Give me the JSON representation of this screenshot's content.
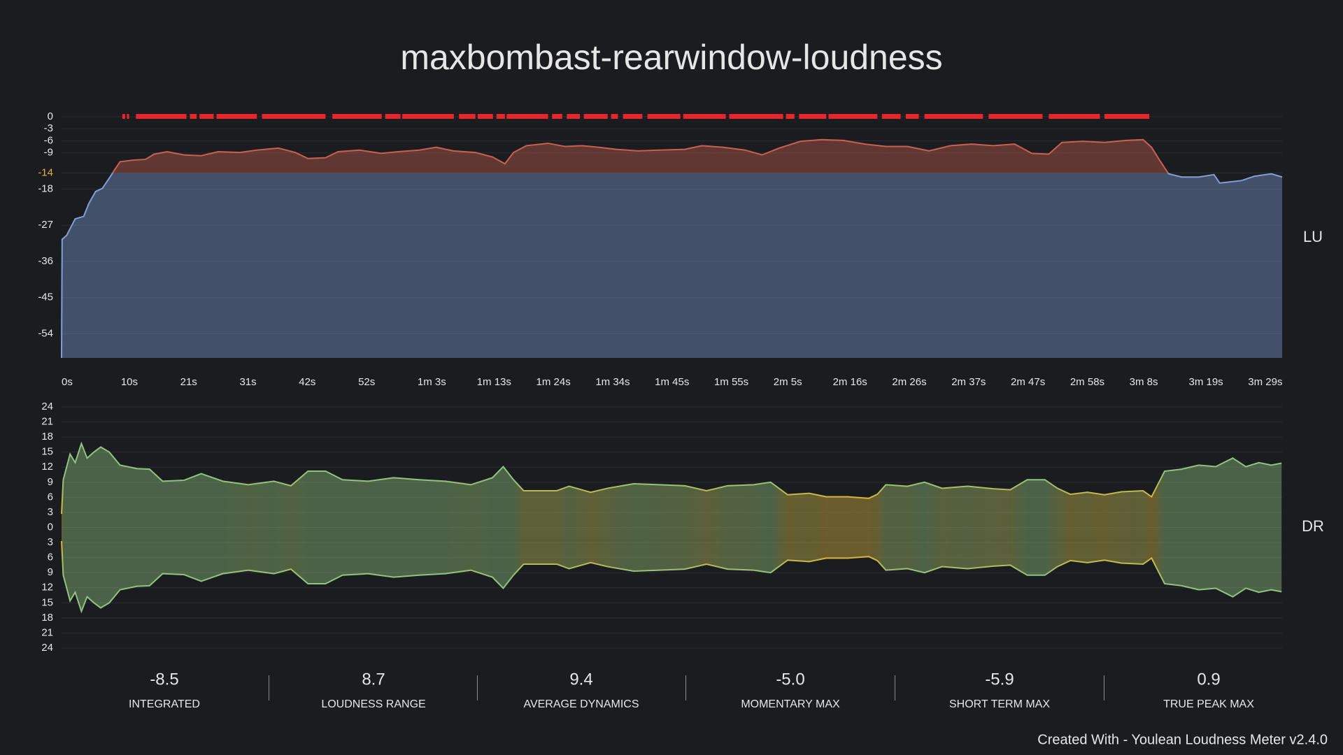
{
  "title": "maxbombast-rearwindow-loudness",
  "chart_data": [
    {
      "type": "area",
      "ylabel": "LU",
      "x": [
        0,
        0.1,
        0.9,
        2.4,
        3.9,
        4.8,
        6.0,
        7.2,
        8.4,
        9.4,
        10.3,
        12.5,
        14.8,
        16.3,
        18.6,
        21.6,
        24.6,
        27.6,
        31.4,
        34.4,
        38.2,
        41.2,
        43.4,
        46.5,
        48.7,
        52.5,
        56.3,
        59.3,
        63.0,
        66.0,
        69.0,
        72.9,
        75.9,
        78.1,
        79.6,
        81.9,
        85.7,
        88.7,
        91.7,
        94.7,
        97.7,
        101.5,
        105.3,
        109.8,
        112.8,
        116.6,
        120.4,
        123.4,
        126.4,
        130.2,
        133.9,
        137.7,
        141.5,
        145.2,
        149.0,
        152.8,
        156.6,
        160.3,
        164.1,
        167.9,
        170.9,
        173.9,
        176.2,
        179.9,
        183.7,
        187.5,
        190.5,
        192.0,
        193.5,
        195.0,
        197.3,
        200.3,
        203.0,
        204.0,
        207.8,
        210.1,
        213.1,
        215.0
      ],
      "values": [
        -60,
        -30.5,
        -29.5,
        -25.4,
        -24.8,
        -21.6,
        -18.6,
        -17.8,
        -15.3,
        -13.1,
        -11.2,
        -10.8,
        -10.6,
        -9.3,
        -8.7,
        -9.5,
        -9.7,
        -8.7,
        -8.9,
        -8.3,
        -7.8,
        -8.9,
        -10.4,
        -10.2,
        -8.7,
        -8.3,
        -9.1,
        -8.7,
        -8.3,
        -7.6,
        -8.5,
        -8.9,
        -10,
        -11.7,
        -8.9,
        -7.2,
        -6.6,
        -7.4,
        -7.2,
        -7.6,
        -8.1,
        -8.5,
        -8.3,
        -8.1,
        -7.2,
        -7.6,
        -8.3,
        -9.5,
        -7.8,
        -6.1,
        -5.7,
        -5.9,
        -6.8,
        -7.4,
        -7.4,
        -8.5,
        -7.2,
        -6.8,
        -7.2,
        -6.8,
        -9.1,
        -9.3,
        -6.4,
        -6.1,
        -6.4,
        -5.9,
        -5.7,
        -7.6,
        -11,
        -14.2,
        -15,
        -15,
        -14.4,
        -16.5,
        -15.9,
        -14.8,
        -14.2,
        -15
      ],
      "xlim": [
        0,
        215
      ],
      "ylim": [
        -60,
        0
      ],
      "yticks": [
        0,
        -3,
        -6,
        -9,
        -14,
        -18,
        -27,
        -36,
        -45,
        -54
      ],
      "xticks": [
        {
          "value": 0,
          "label": "0s"
        },
        {
          "value": 10.45,
          "label": "10s"
        },
        {
          "value": 20.9,
          "label": "21s"
        },
        {
          "value": 31.35,
          "label": "31s"
        },
        {
          "value": 41.8,
          "label": "42s"
        },
        {
          "value": 52.25,
          "label": "52s"
        },
        {
          "value": 62.7,
          "label": "1m 3s"
        },
        {
          "value": 73.15,
          "label": "1m 13s"
        },
        {
          "value": 83.6,
          "label": "1m 24s"
        },
        {
          "value": 94.05,
          "label": "1m 34s"
        },
        {
          "value": 104.5,
          "label": "1m 45s"
        },
        {
          "value": 114.95,
          "label": "1m 55s"
        },
        {
          "value": 125.4,
          "label": "2m 5s"
        },
        {
          "value": 135.85,
          "label": "2m 16s"
        },
        {
          "value": 146.3,
          "label": "2m 26s"
        },
        {
          "value": 156.75,
          "label": "2m 37s"
        },
        {
          "value": 167.2,
          "label": "2m 47s"
        },
        {
          "value": 177.65,
          "label": "2m 58s"
        },
        {
          "value": 188.1,
          "label": "3m 8s"
        },
        {
          "value": 198.55,
          "label": "3m 19s"
        },
        {
          "value": 209,
          "label": "3m 29s"
        }
      ],
      "target": -14,
      "target_color": "#e0b13c",
      "above_color": "#c9604f",
      "below_color": "#7f9fd6",
      "grid": true,
      "clip_markers": {
        "color": "#e5262b",
        "start": [
          10.7,
          11.5,
          13.1,
          22.6,
          24.3,
          27.3,
          35.3,
          47.7,
          57.0,
          60.0,
          70.0,
          73.3,
          76.6,
          78.4,
          86.4,
          89.0,
          92.0,
          96.8,
          98.9,
          103.2,
          109.5,
          117.6,
          127.6,
          129.9,
          135.1,
          144.5,
          148.7,
          152.0,
          163.3,
          173.9,
          183.7
        ],
        "end": [
          11.2,
          11.9,
          22.0,
          23.8,
          26.8,
          34.4,
          46.5,
          56.4,
          59.7,
          69.1,
          72.9,
          76.0,
          78.1,
          85.7,
          88.2,
          91.3,
          96.2,
          98.0,
          102.3,
          109.0,
          117.0,
          127.1,
          129.1,
          134.7,
          143.7,
          147.8,
          151.0,
          162.3,
          172.8,
          182.9,
          191.6
        ]
      }
    },
    {
      "type": "mirror",
      "ylabel": "DR",
      "x": [
        0,
        0.3,
        1.5,
        2.4,
        3.5,
        4.5,
        5.7,
        6.9,
        8.4,
        10.3,
        13.3,
        15.5,
        17.8,
        21.6,
        24.6,
        28.4,
        32.9,
        37.4,
        40.4,
        43.4,
        46.5,
        49.5,
        54.0,
        58.5,
        63.0,
        67.6,
        72.1,
        75.9,
        77.8,
        79.6,
        81.4,
        84.2,
        87.2,
        89.4,
        93.2,
        96.2,
        100.8,
        105.3,
        109.8,
        113.6,
        117.3,
        121.9,
        124.9,
        127.9,
        131.7,
        134.7,
        138.5,
        142.2,
        143.7,
        145.2,
        149.0,
        152.0,
        155.1,
        159.6,
        164.1,
        167.1,
        170.1,
        173.2,
        175.4,
        177.7,
        180.7,
        183.7,
        186.7,
        190.5,
        192.0,
        194.3,
        197.3,
        200.3,
        203.3,
        206.3,
        208.6,
        210.9,
        213.1,
        214.9
      ],
      "values": [
        2.7,
        9.5,
        14.6,
        12.9,
        16.7,
        13.8,
        15,
        16,
        15,
        12.4,
        11.7,
        11.6,
        9.2,
        9.4,
        10.7,
        9.2,
        8.5,
        9.2,
        8.3,
        11.2,
        11.2,
        9.5,
        9.2,
        9.9,
        9.5,
        9.2,
        8.5,
        9.9,
        12.1,
        9.5,
        7.3,
        7.3,
        7.3,
        8.2,
        7.0,
        7.8,
        8.7,
        8.5,
        8.3,
        7.3,
        8.3,
        8.5,
        9.0,
        6.5,
        6.8,
        6.1,
        6.1,
        5.8,
        6.6,
        8.5,
        8.2,
        9.0,
        7.8,
        8.2,
        7.7,
        7.5,
        9.5,
        9.5,
        7.8,
        6.6,
        7.0,
        6.5,
        7.1,
        7.3,
        6.1,
        11.2,
        11.6,
        12.4,
        12.1,
        13.8,
        12.1,
        12.9,
        12.4,
        12.8
      ],
      "xlim": [
        0,
        215
      ],
      "ylim": [
        -24,
        24
      ],
      "yticks": [
        24,
        21,
        18,
        15,
        12,
        9,
        6,
        3,
        0,
        {
          "value": -3,
          "label": "3"
        },
        {
          "value": -6,
          "label": "6"
        },
        {
          "value": -9,
          "label": "9"
        },
        {
          "value": -12,
          "label": "12"
        },
        {
          "value": -15,
          "label": "15"
        },
        {
          "value": -18,
          "label": "18"
        },
        {
          "value": -21,
          "label": "21"
        },
        {
          "value": -24,
          "label": "24"
        }
      ],
      "high_color": "#8fc47e",
      "low_color": "#d9b43a",
      "color_range": [
        6,
        9
      ],
      "grid": true
    }
  ],
  "stats": [
    {
      "value": "-8.5",
      "label": "INTEGRATED"
    },
    {
      "value": "8.7",
      "label": "LOUDNESS RANGE"
    },
    {
      "value": "9.4",
      "label": "AVERAGE DYNAMICS"
    },
    {
      "value": "-5.0",
      "label": "MOMENTARY MAX"
    },
    {
      "value": "-5.9",
      "label": "SHORT TERM MAX"
    },
    {
      "value": "0.9",
      "label": "TRUE PEAK MAX"
    }
  ],
  "footer": "Created With - Youlean Loudness Meter v2.4.0"
}
